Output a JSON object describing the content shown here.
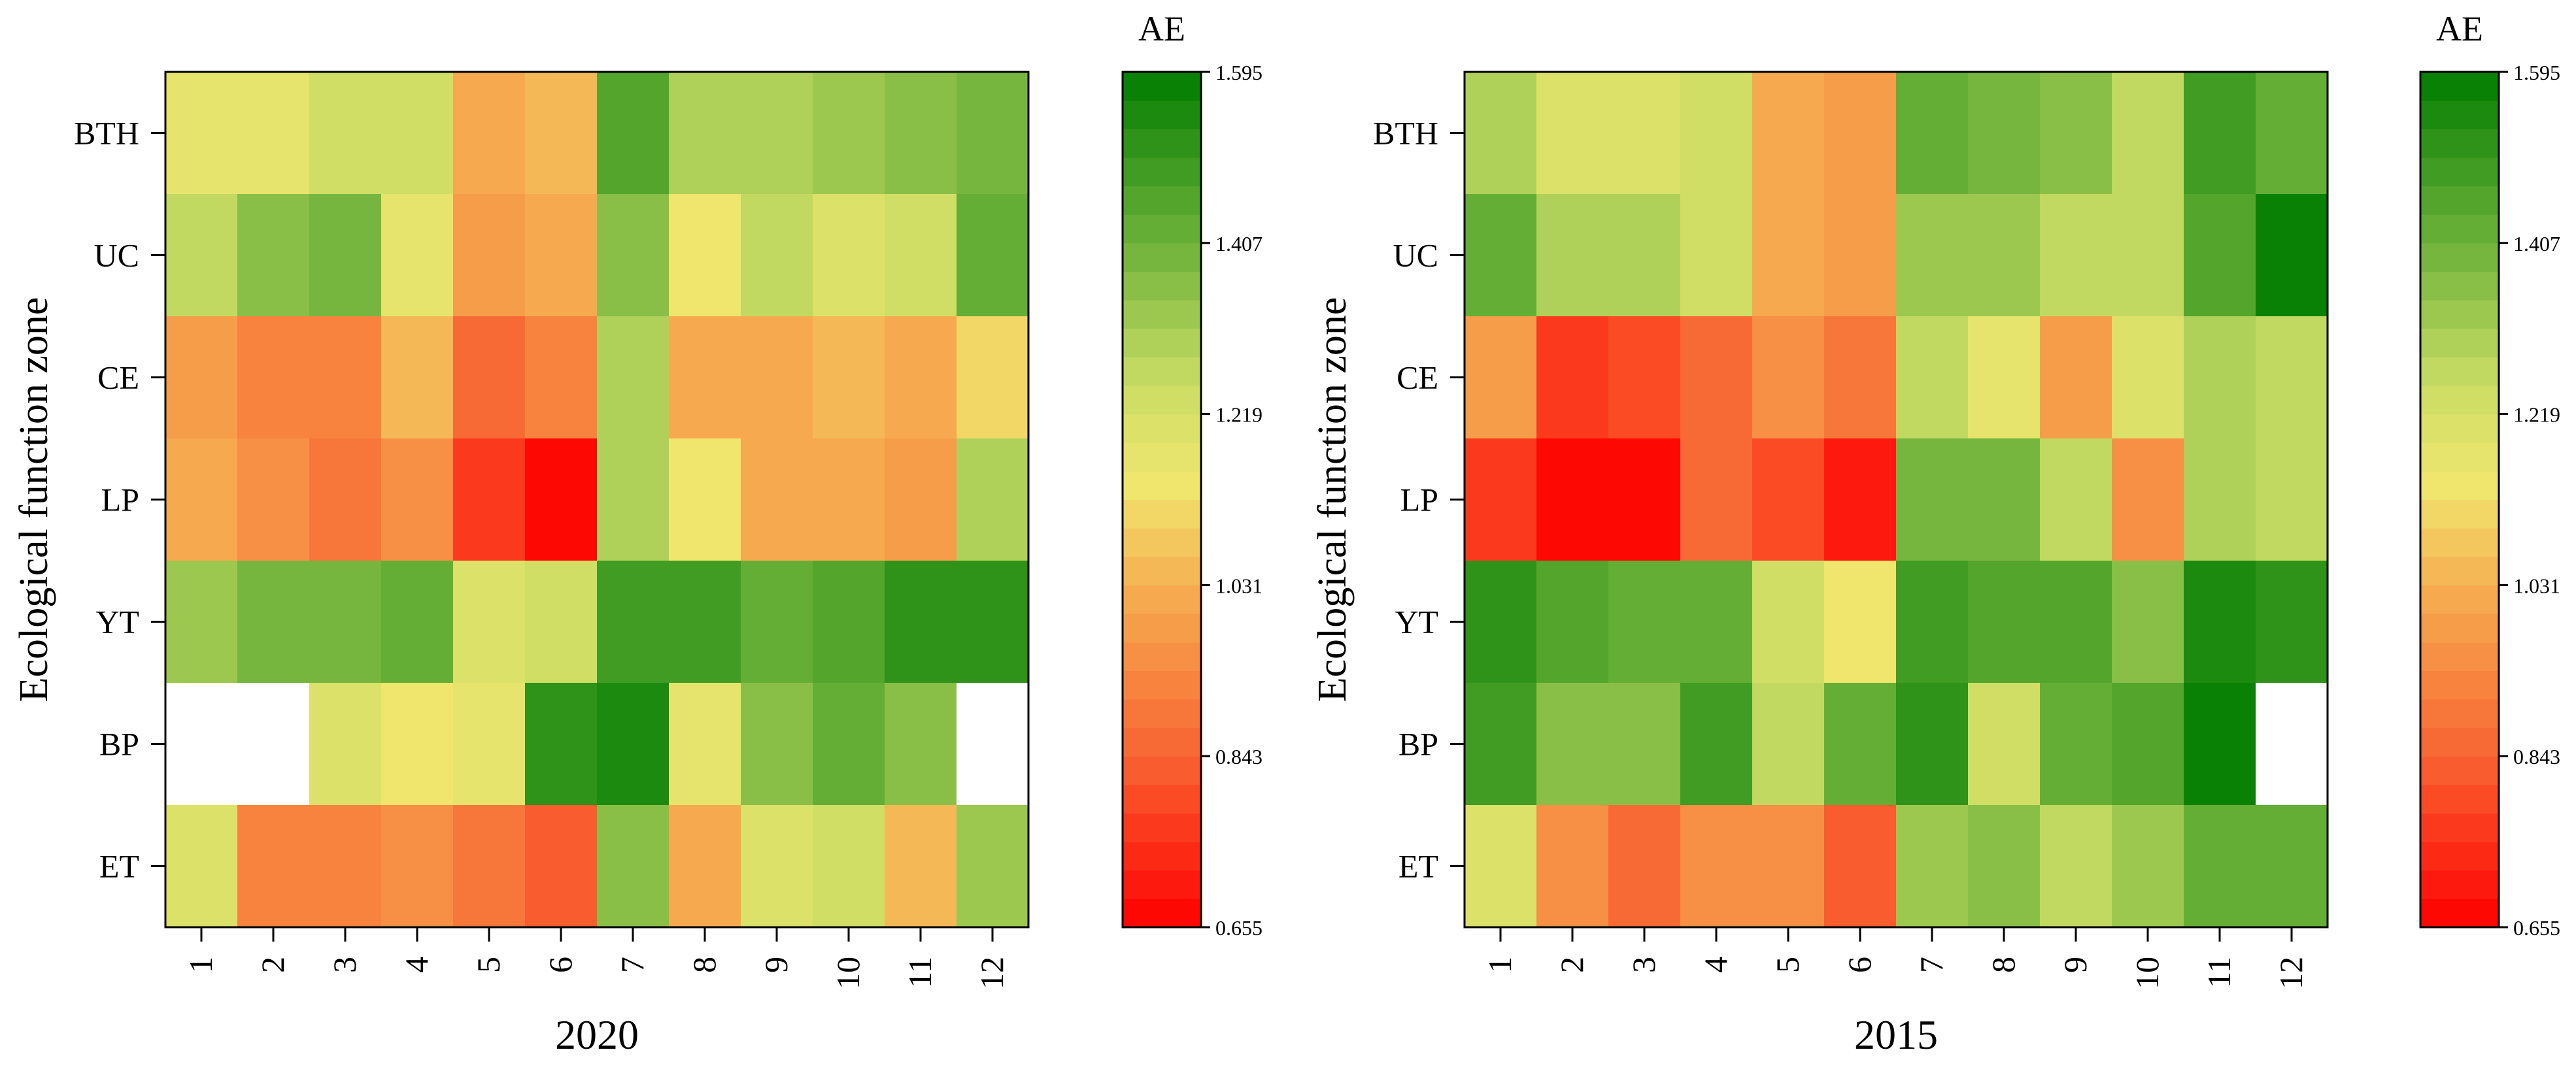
{
  "chart_data": [
    {
      "type": "heatmap",
      "title": "2020",
      "xlabel": "",
      "ylabel": "Ecological function zone",
      "x_categories": [
        "1",
        "2",
        "3",
        "4",
        "5",
        "6",
        "7",
        "8",
        "9",
        "10",
        "11",
        "12"
      ],
      "y_categories": [
        "BTH",
        "UC",
        "CE",
        "LP",
        "YT",
        "BP",
        "ET"
      ],
      "values": [
        [
          1.16,
          1.18,
          1.22,
          1.24,
          1.0,
          1.04,
          1.44,
          1.3,
          1.3,
          1.32,
          1.36,
          1.39
        ],
        [
          1.26,
          1.36,
          1.39,
          1.17,
          0.97,
          1.02,
          1.35,
          1.14,
          1.27,
          1.21,
          1.25,
          1.43
        ],
        [
          0.98,
          0.91,
          0.93,
          1.04,
          0.87,
          0.92,
          1.31,
          1.02,
          1.02,
          1.04,
          1.03,
          1.1
        ],
        [
          1.03,
          0.96,
          0.9,
          0.95,
          0.76,
          0.68,
          1.3,
          1.13,
          1.01,
          1.01,
          0.97,
          1.29
        ],
        [
          1.32,
          1.39,
          1.39,
          1.42,
          1.2,
          1.24,
          1.48,
          1.47,
          1.43,
          1.46,
          1.52,
          1.51
        ],
        [
          null,
          null,
          1.19,
          1.14,
          1.17,
          1.53,
          1.54,
          1.18,
          1.36,
          1.41,
          1.37,
          null
        ],
        [
          1.19,
          0.93,
          0.91,
          0.96,
          0.88,
          0.83,
          1.37,
          1.0,
          1.2,
          1.22,
          1.05,
          1.34
        ]
      ],
      "colorbar": {
        "label": "AE",
        "min": 0.655,
        "max": 1.595,
        "tick_values": [
          0.655,
          0.843,
          1.031,
          1.219,
          1.407,
          1.595
        ],
        "tick_labels": [
          "0.655",
          "0.843",
          "1.031",
          "1.219",
          "1.407",
          "1.595"
        ],
        "levels": 30
      }
    },
    {
      "type": "heatmap",
      "title": "2015",
      "xlabel": "",
      "ylabel": "Ecological function zone",
      "x_categories": [
        "1",
        "2",
        "3",
        "4",
        "5",
        "6",
        "7",
        "8",
        "9",
        "10",
        "11",
        "12"
      ],
      "y_categories": [
        "BTH",
        "UC",
        "CE",
        "LP",
        "YT",
        "BP",
        "ET"
      ],
      "values": [
        [
          1.3,
          1.19,
          1.19,
          1.24,
          1.03,
          0.98,
          1.42,
          1.39,
          1.37,
          1.28,
          1.48,
          1.41
        ],
        [
          1.43,
          1.3,
          1.3,
          1.24,
          1.02,
          0.98,
          1.32,
          1.32,
          1.28,
          1.28,
          1.46,
          1.59
        ],
        [
          0.97,
          0.78,
          0.8,
          0.86,
          0.96,
          0.89,
          1.26,
          1.17,
          0.99,
          1.2,
          1.29,
          1.27
        ],
        [
          0.75,
          0.67,
          0.67,
          0.87,
          0.79,
          0.69,
          1.39,
          1.39,
          1.26,
          0.96,
          1.31,
          1.28
        ],
        [
          1.51,
          1.44,
          1.41,
          1.41,
          1.22,
          1.13,
          1.47,
          1.45,
          1.44,
          1.37,
          1.54,
          1.52
        ],
        [
          1.48,
          1.36,
          1.36,
          1.49,
          1.26,
          1.43,
          1.52,
          1.24,
          1.41,
          1.46,
          1.59,
          null
        ],
        [
          1.21,
          0.94,
          0.87,
          0.94,
          0.96,
          0.83,
          1.32,
          1.36,
          1.27,
          1.33,
          1.42,
          1.42
        ]
      ],
      "colorbar": {
        "label": "AE",
        "min": 0.655,
        "max": 1.595,
        "tick_values": [
          0.655,
          0.843,
          1.031,
          1.219,
          1.407,
          1.595
        ],
        "tick_labels": [
          "0.655",
          "0.843",
          "1.031",
          "1.219",
          "1.407",
          "1.595"
        ],
        "levels": 30
      }
    }
  ]
}
